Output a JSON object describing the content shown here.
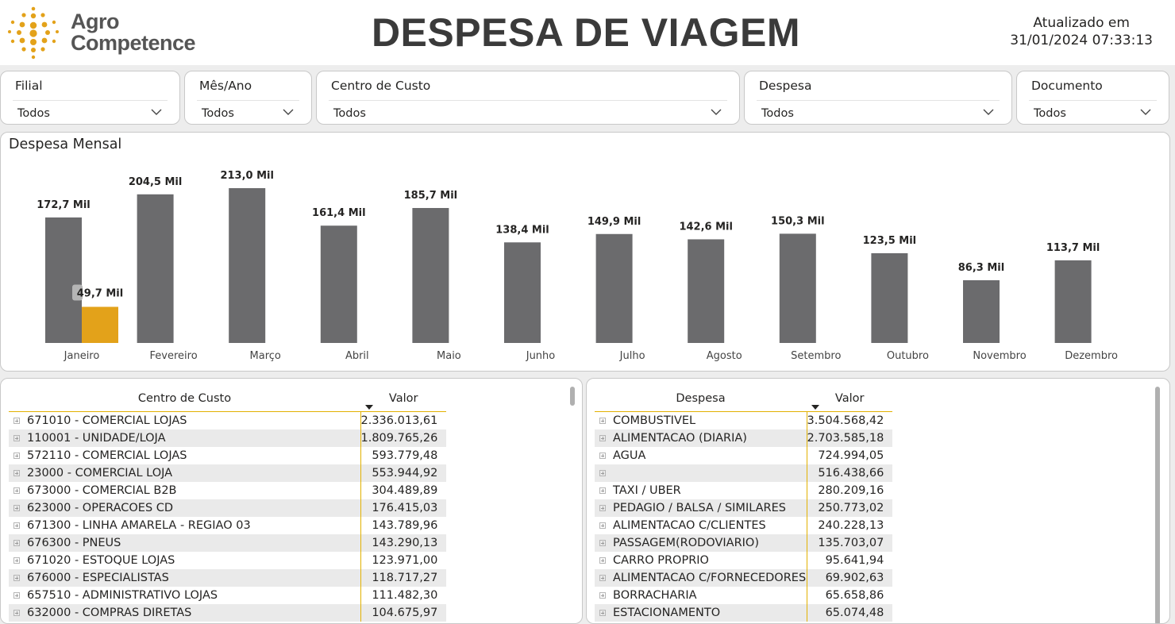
{
  "header": {
    "logo_line1": "Agro",
    "logo_line2": "Competence",
    "title": "DESPESA DE VIAGEM",
    "updated_label": "Atualizado em",
    "updated_value": "31/01/2024 07:33:13"
  },
  "filters": [
    {
      "label": "Filial",
      "value": "Todos"
    },
    {
      "label": "Mês/Ano",
      "value": "Todos"
    },
    {
      "label": "Centro de Custo",
      "value": "Todos"
    },
    {
      "label": "Despesa",
      "value": "Todos"
    },
    {
      "label": "Documento",
      "value": "Todos"
    }
  ],
  "chart_title": "Despesa Mensal",
  "chart_data": {
    "type": "bar",
    "categories": [
      "Janeiro",
      "Fevereiro",
      "Março",
      "Abril",
      "Maio",
      "Junho",
      "Julho",
      "Agosto",
      "Setembro",
      "Outubro",
      "Novembro",
      "Dezembro"
    ],
    "series": [
      {
        "values": [
          172.7,
          204.5,
          213.0,
          161.4,
          185.7,
          138.4,
          149.9,
          142.6,
          150.3,
          123.5,
          86.3,
          113.7
        ],
        "labels": [
          "172,7 Mil",
          "204,5 Mil",
          "213,0 Mil",
          "161,4 Mil",
          "185,7 Mil",
          "138,4 Mil",
          "149,9 Mil",
          "142,6 Mil",
          "150,3 Mil",
          "123,5 Mil",
          "86,3 Mil",
          "113,7 Mil"
        ],
        "color": "#6b6b6d"
      },
      {
        "values": [
          49.7,
          null,
          null,
          null,
          null,
          null,
          null,
          null,
          null,
          null,
          null,
          null
        ],
        "labels": [
          "49,7 Mil",
          "",
          "",
          "",
          "",
          "",
          "",
          "",
          "",
          "",
          "",
          ""
        ],
        "color": "#e3a21a"
      }
    ],
    "ylim": [
      0,
      213.0
    ],
    "grid": false,
    "legend": "none"
  },
  "table_cc": {
    "headers": [
      "Centro de Custo",
      "Valor"
    ],
    "rows": [
      {
        "name": "671010 - COMERCIAL LOJAS",
        "value": "2.336.013,61"
      },
      {
        "name": "110001 - UNIDADE/LOJA",
        "value": "1.809.765,26"
      },
      {
        "name": "572110 - COMERCIAL LOJAS",
        "value": "593.779,48"
      },
      {
        "name": "23000 - COMERCIAL LOJA",
        "value": "553.944,92"
      },
      {
        "name": "673000 - COMERCIAL B2B",
        "value": "304.489,89"
      },
      {
        "name": "623000 - OPERACOES CD",
        "value": "176.415,03"
      },
      {
        "name": "671300 - LINHA AMARELA - REGIAO 03",
        "value": "143.789,96"
      },
      {
        "name": "676300 - PNEUS",
        "value": "143.290,13"
      },
      {
        "name": "671020 - ESTOQUE LOJAS",
        "value": "123.971,00"
      },
      {
        "name": "676000 - ESPECIALISTAS",
        "value": "118.717,27"
      },
      {
        "name": "657510 - ADMINISTRATIVO LOJAS",
        "value": "111.482,30"
      },
      {
        "name": "632000 - COMPRAS DIRETAS",
        "value": "104.675,97"
      }
    ]
  },
  "table_despesa": {
    "headers": [
      "Despesa",
      "Valor"
    ],
    "rows": [
      {
        "name": "COMBUSTIVEL",
        "value": "3.504.568,42"
      },
      {
        "name": "ALIMENTACAO (DIARIA)",
        "value": "2.703.585,18"
      },
      {
        "name": "AGUA",
        "value": "724.994,05"
      },
      {
        "name": "",
        "value": "516.438,66"
      },
      {
        "name": "TAXI / UBER",
        "value": "280.209,16"
      },
      {
        "name": "PEDAGIO / BALSA / SIMILARES",
        "value": "250.773,02"
      },
      {
        "name": "ALIMENTACAO C/CLIENTES",
        "value": "240.228,13"
      },
      {
        "name": "PASSAGEM(RODOVIARIO)",
        "value": "135.703,07"
      },
      {
        "name": "CARRO PROPRIO",
        "value": "95.641,94"
      },
      {
        "name": "ALIMENTACAO C/FORNECEDORES",
        "value": "69.902,63"
      },
      {
        "name": "BORRACHARIA",
        "value": "65.658,86"
      },
      {
        "name": "ESTACIONAMENTO",
        "value": "65.074,48"
      }
    ]
  }
}
